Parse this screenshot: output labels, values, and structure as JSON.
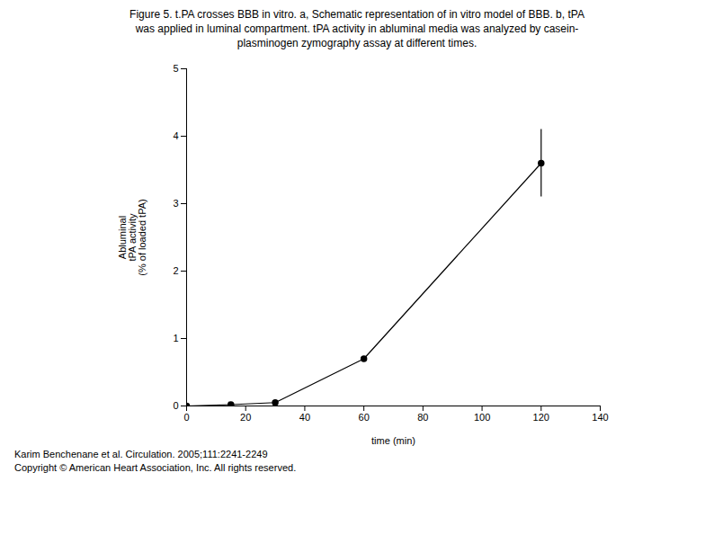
{
  "chart_data": {
    "type": "line",
    "title": [
      "Figure 5. t.PA crosses BBB in vitro.  a, Schematic representation of in vitro model of BBB.  b, tPA",
      "was applied in luminal compartment. tPA activity in abluminal media was analyzed by casein-",
      "plasminogen zymography assay at different times."
    ],
    "x": [
      0,
      15,
      30,
      60,
      120
    ],
    "values": [
      0.0,
      0.02,
      0.05,
      0.7,
      3.6
    ],
    "errors": [
      0,
      0,
      0,
      0,
      0.5
    ],
    "xlabel": "time (min)",
    "ylabel": "Abluminal\ntPA activity\n(% of loaded tPA)",
    "xlim": [
      0,
      140
    ],
    "ylim": [
      0,
      5
    ],
    "xticks": [
      0,
      20,
      40,
      60,
      80,
      100,
      120,
      140
    ],
    "yticks": [
      0,
      1,
      2,
      3,
      4,
      5
    ],
    "color": "#000000",
    "marker": "o",
    "grid": false,
    "annotations": [
      "Karim Benchenane et al. Circulation. 2005;111:2241-2249",
      "Copyright © American Heart Association, Inc.  All rights reserved."
    ]
  }
}
